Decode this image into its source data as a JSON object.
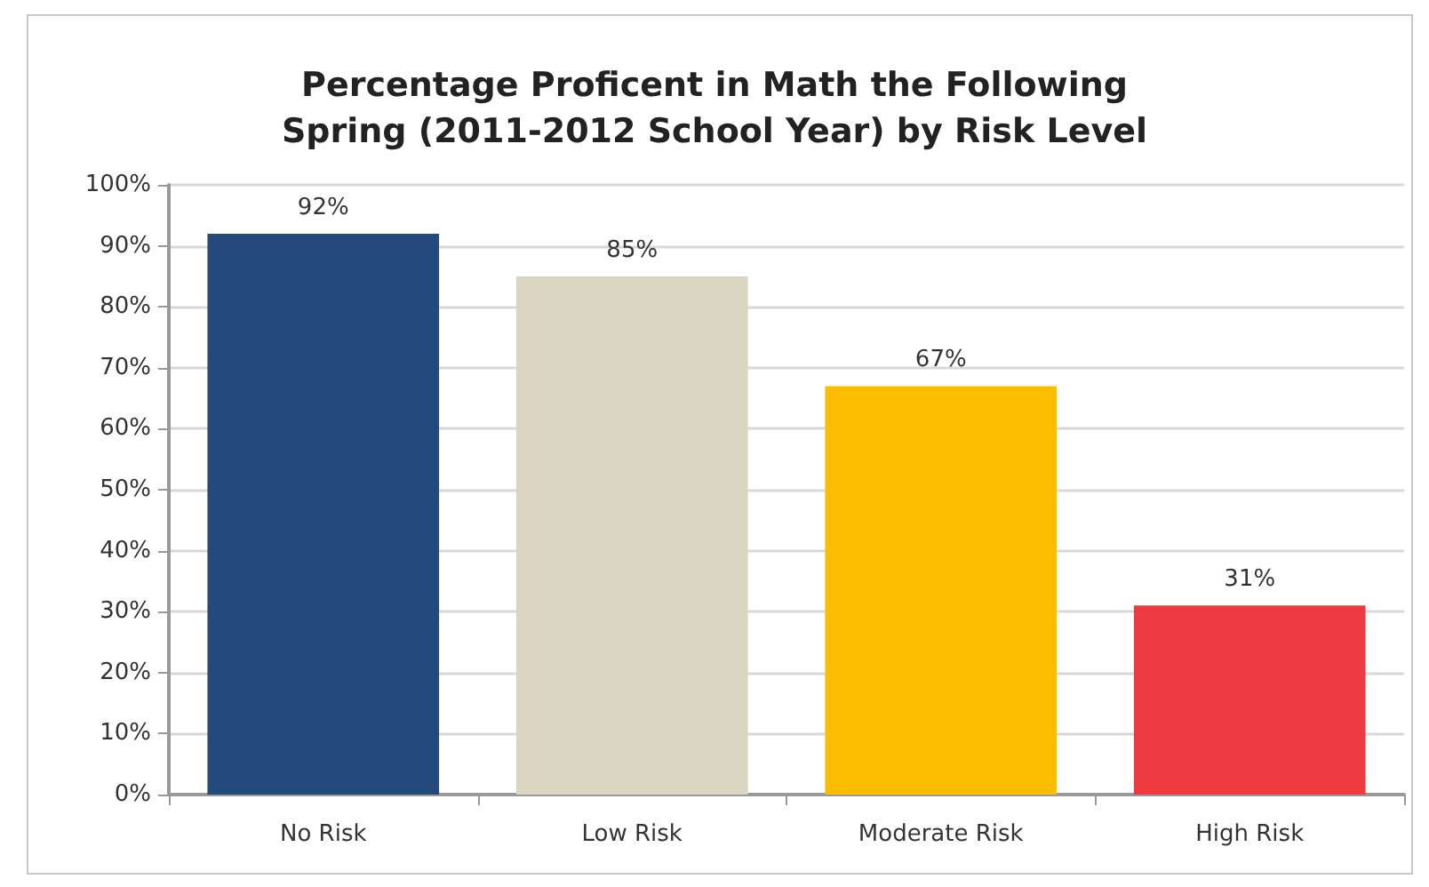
{
  "chart_data": {
    "type": "bar",
    "title": "Percentage Proficent in Math the Following\nSpring (2011-2012 School Year) by Risk Level",
    "categories": [
      "No Risk",
      "Low Risk",
      "Moderate Risk",
      "High Risk"
    ],
    "values": [
      92,
      85,
      67,
      31
    ],
    "colors": [
      "#244a7c",
      "#d9d5c1",
      "#fcbc00",
      "#ee3b42"
    ],
    "value_labels": [
      "92%",
      "85%",
      "67%",
      "31%"
    ],
    "ylim": [
      0,
      100
    ],
    "yticks": [
      {
        "value": 0,
        "label": "0%"
      },
      {
        "value": 10,
        "label": "10%"
      },
      {
        "value": 20,
        "label": "20%"
      },
      {
        "value": 30,
        "label": "30%"
      },
      {
        "value": 40,
        "label": "40%"
      },
      {
        "value": 50,
        "label": "50%"
      },
      {
        "value": 60,
        "label": "60%"
      },
      {
        "value": 70,
        "label": "70%"
      },
      {
        "value": 80,
        "label": "80%"
      },
      {
        "value": 90,
        "label": "90%"
      },
      {
        "value": 100,
        "label": "100%"
      }
    ],
    "grid": "y"
  }
}
